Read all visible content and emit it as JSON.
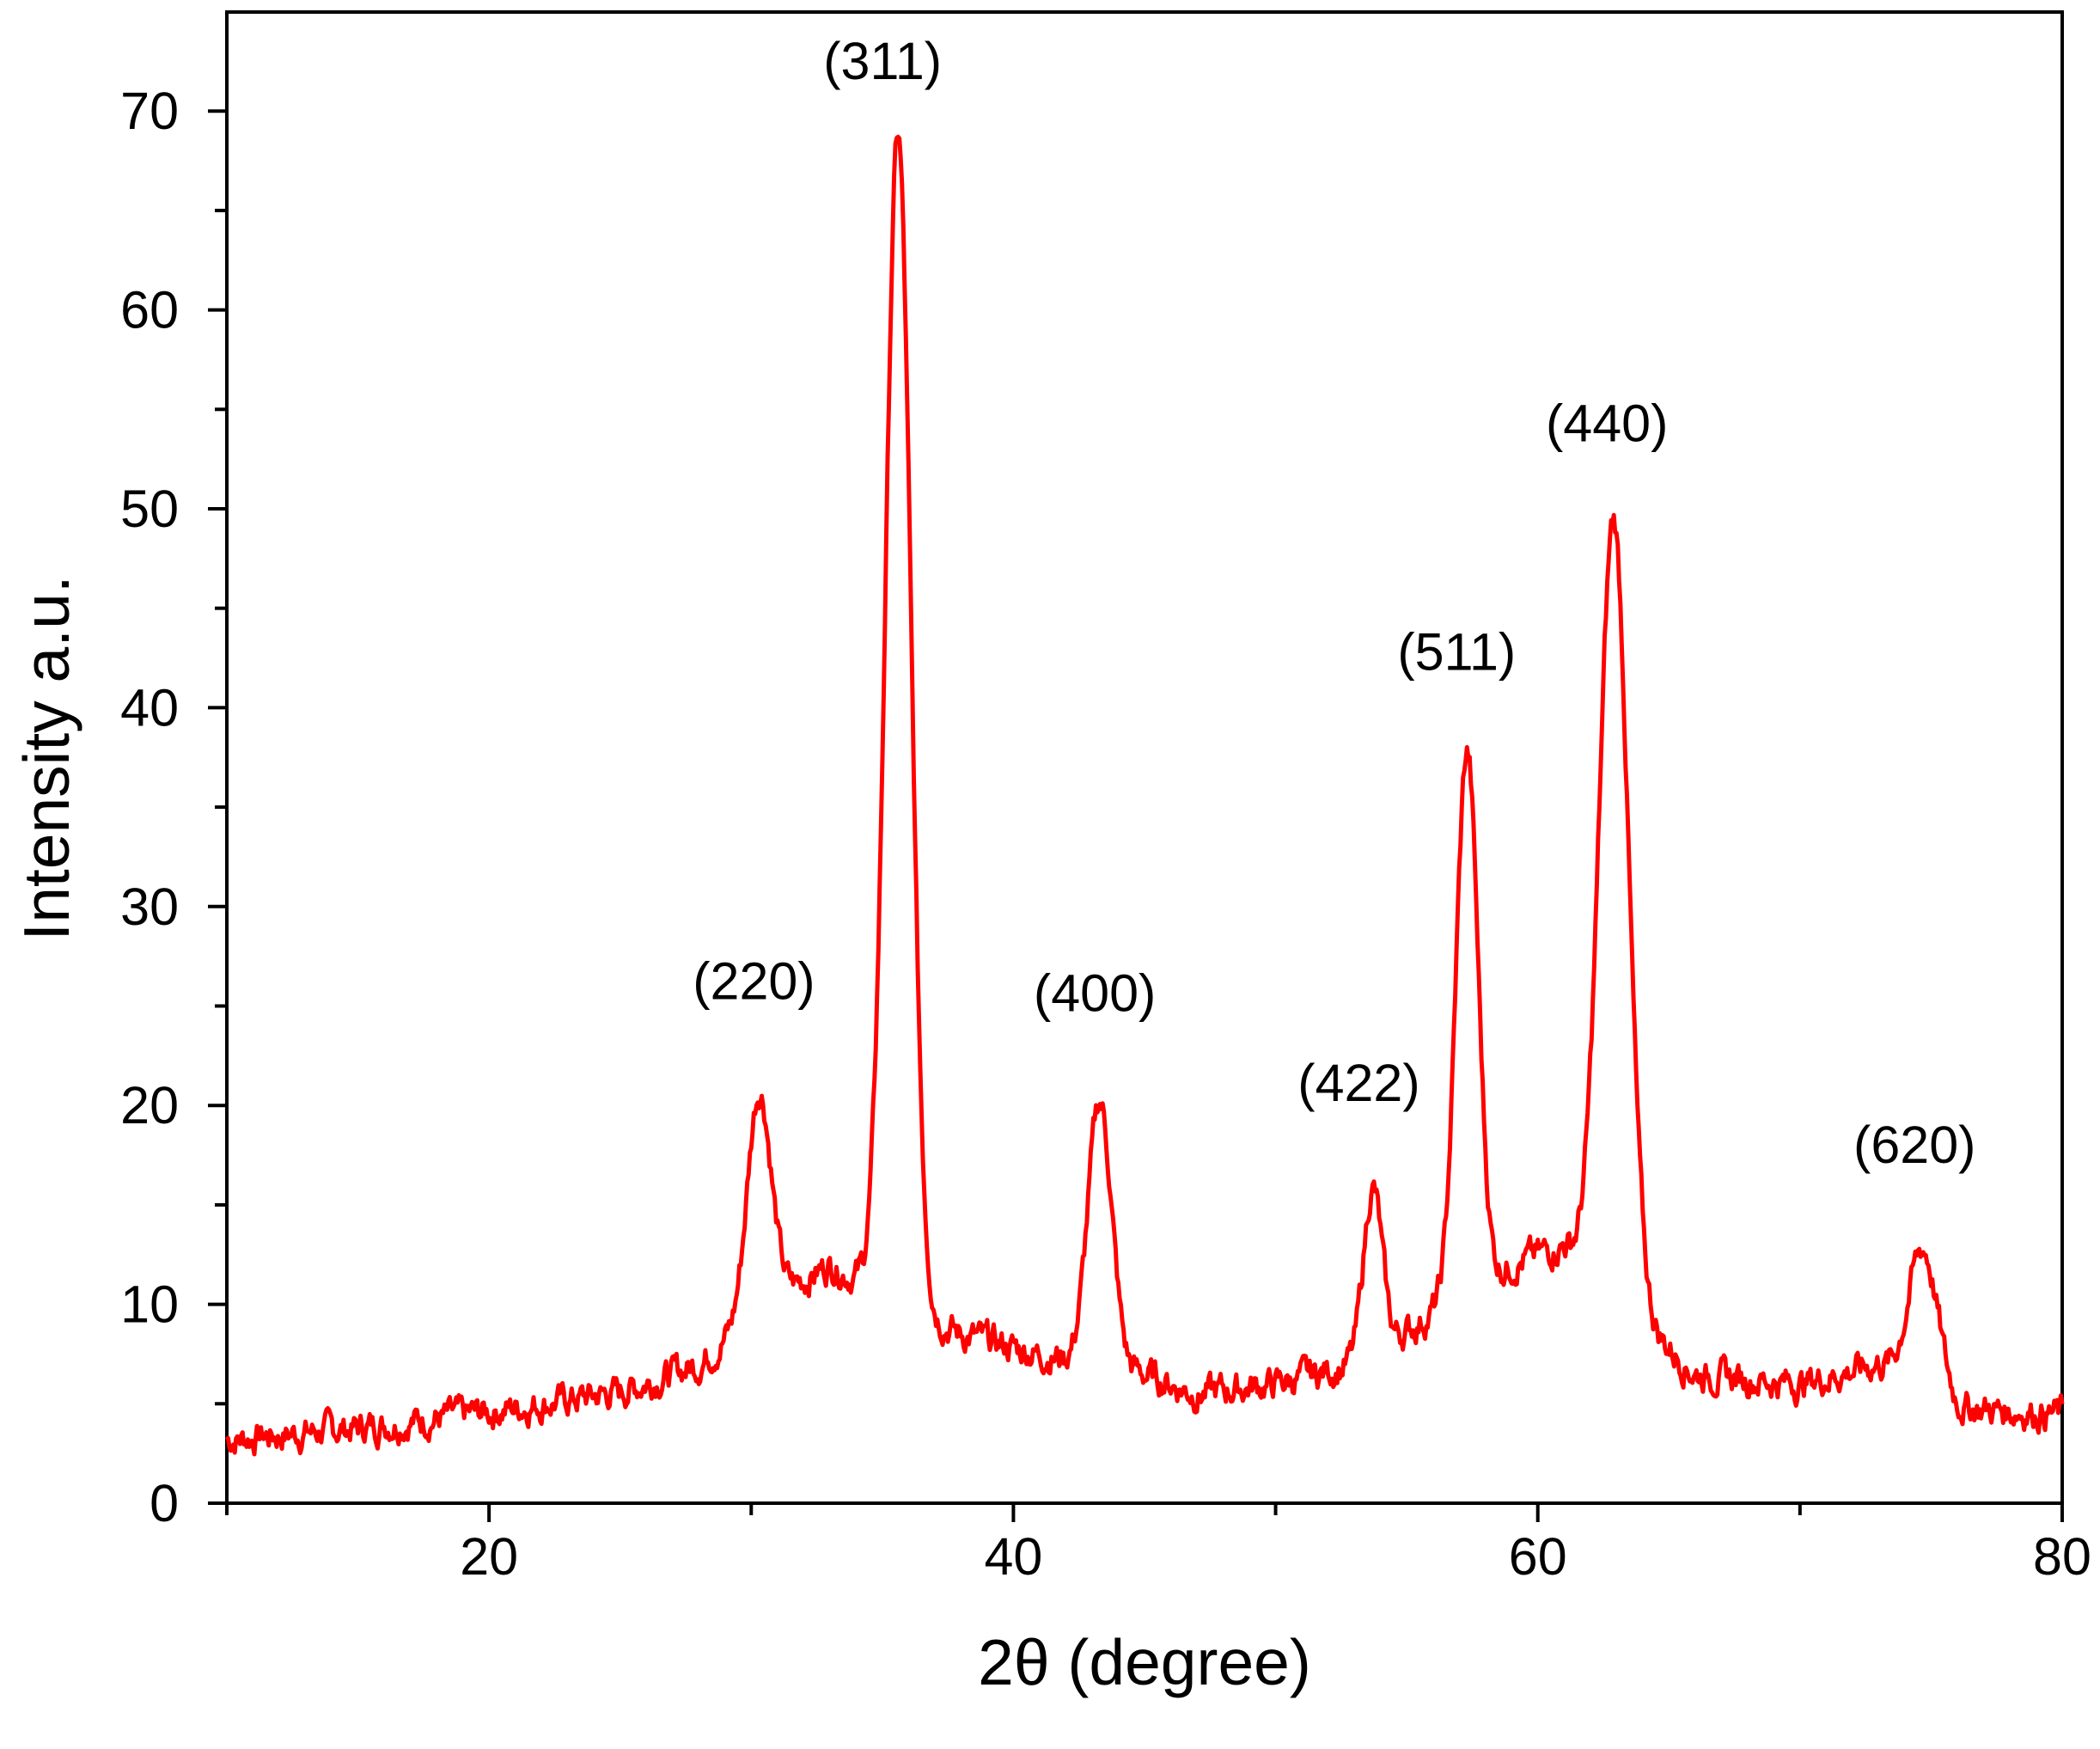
{
  "chart_data": {
    "type": "line",
    "title": "",
    "xlabel": "2θ (degree)",
    "ylabel": "Intensity a.u.",
    "xlim": [
      10,
      80
    ],
    "ylim": [
      0,
      73
    ],
    "x_ticks": [
      20,
      40,
      60,
      80
    ],
    "x_tick_labels": [
      "20",
      "40",
      "60",
      "80"
    ],
    "y_ticks": [
      0,
      10,
      20,
      30,
      40,
      50,
      60,
      70
    ],
    "y_tick_labels": [
      "0",
      "10",
      "20",
      "30",
      "40",
      "50",
      "60",
      "70"
    ],
    "grid": false,
    "legend": "none",
    "line_color": "#ff0000",
    "background_level": {
      "x": [
        10,
        15,
        20,
        25,
        28,
        31,
        33,
        38,
        41,
        45,
        47,
        50,
        53,
        59,
        61,
        66,
        70,
        73,
        76,
        80
      ],
      "y": [
        3.2,
        3.8,
        4.6,
        5.6,
        7,
        10.5,
        12,
        8.5,
        7.5,
        6.5,
        5.5,
        6,
        7,
        12,
        13,
        6.5,
        6,
        7,
        4.8,
        4.5
      ]
    },
    "peaks": [
      {
        "label": "(220)",
        "x": 30.3,
        "y": 20.8
      },
      {
        "label": "(311)",
        "x": 35.6,
        "y": 68.8
      },
      {
        "label": "(400)",
        "x": 43.3,
        "y": 20.2
      },
      {
        "label": "(422)",
        "x": 53.7,
        "y": 15.9
      },
      {
        "label": "(511)",
        "x": 57.3,
        "y": 37.8
      },
      {
        "label": "(440)",
        "x": 62.9,
        "y": 49.5
      },
      {
        "label": "(620)",
        "x": 74.7,
        "y": 12.8
      }
    ]
  }
}
